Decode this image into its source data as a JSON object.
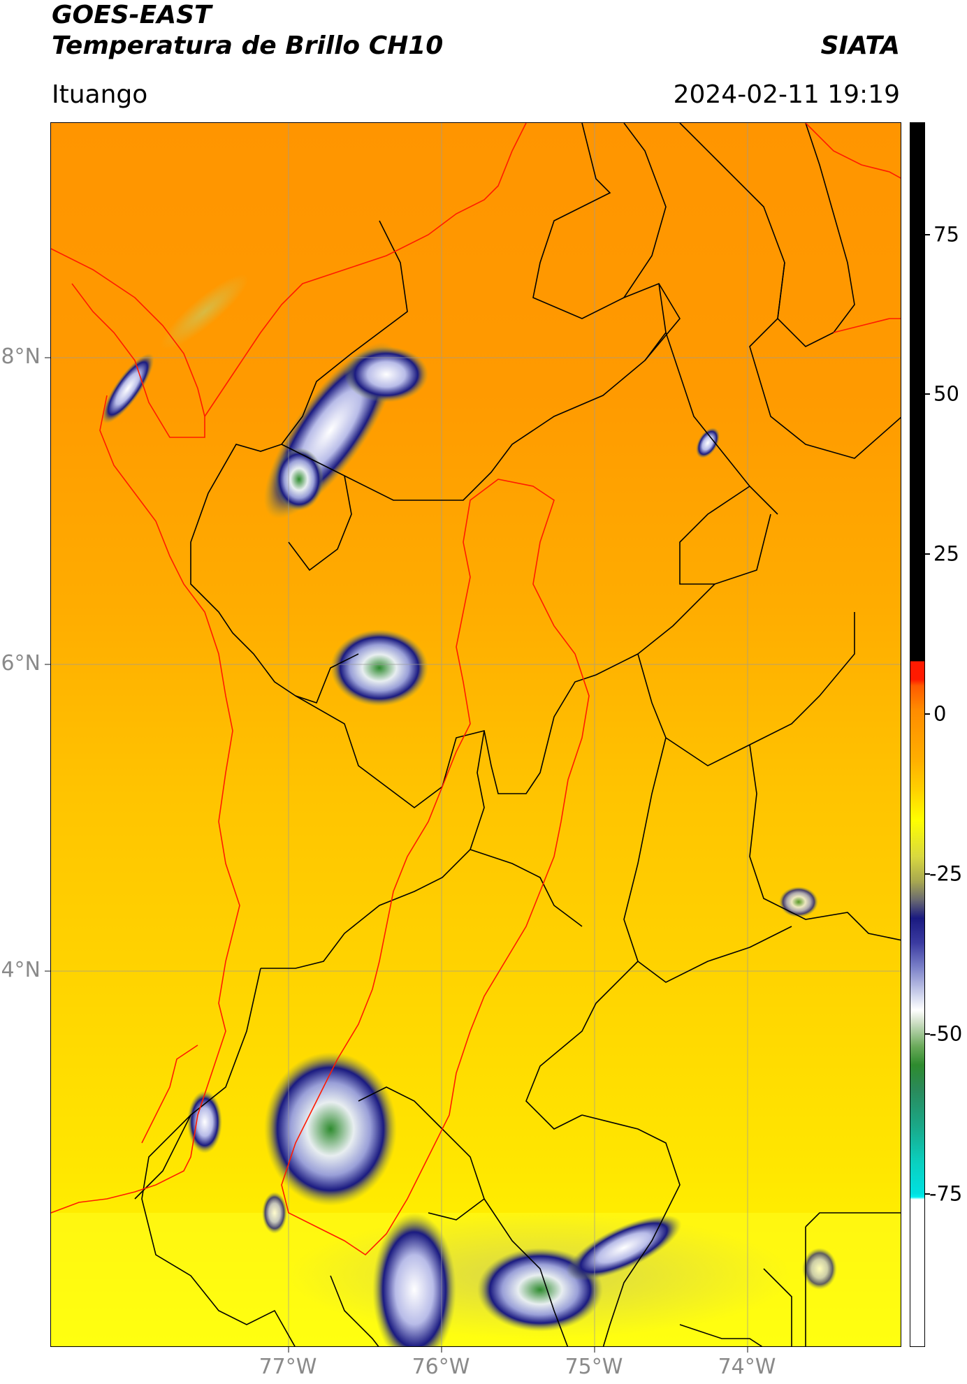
{
  "header": {
    "satellite": "GOES-EAST",
    "product": "Temperatura de Brillo CH10",
    "source": "SIATA",
    "region": "Ituango",
    "datetime": "2024-02-11 19:19"
  },
  "map": {
    "lat_labels": [
      "8°N",
      "6°N",
      "4°N"
    ],
    "lon_labels": [
      "77°W",
      "76°W",
      "75°W",
      "74°W"
    ]
  },
  "colorbar": {
    "labels": [
      "75",
      "50",
      "25",
      "0",
      "-25",
      "-50",
      "-75"
    ],
    "colors": {
      "black": "#000000",
      "red": "#ff1a00",
      "orange": "#ff9900",
      "yellow": "#ffff00",
      "olive": "#a8a850",
      "navy": "#1a1a80",
      "white": "#ffffff",
      "green": "#2e8b2e",
      "cyan": "#00e0e0"
    }
  }
}
